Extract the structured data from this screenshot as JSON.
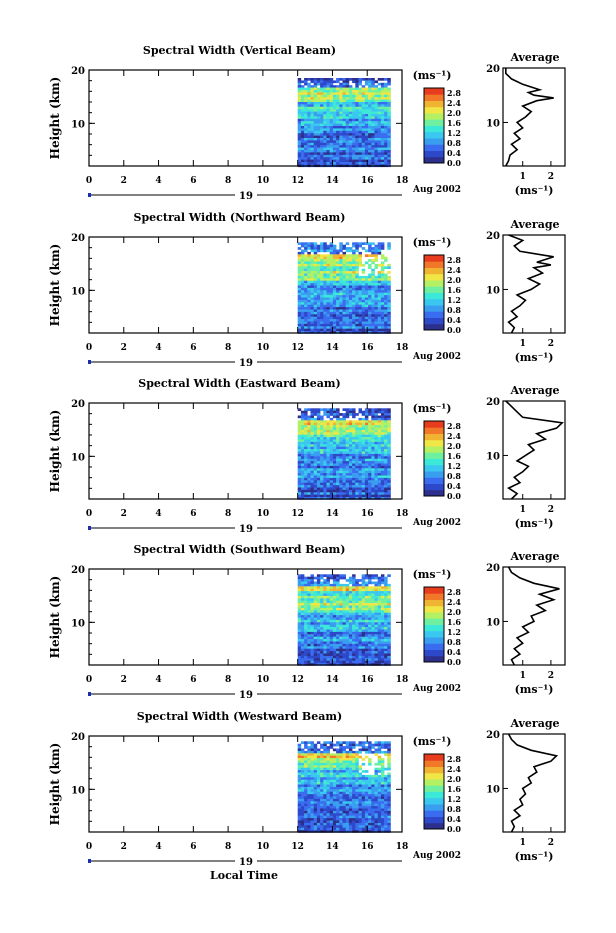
{
  "figure": {
    "xlabel": "Local Time",
    "ylabel": "Height (km)",
    "date_label": "Aug 2002",
    "day_label": "19",
    "unit_label": "(ms⁻¹)",
    "avg_title": "Average",
    "avg_xlabel": "(ms⁻¹)",
    "colors": [
      "#2c2f8c",
      "#2d48c8",
      "#3a6cf0",
      "#3a9ef0",
      "#3ac8f0",
      "#3ce8d8",
      "#6ef0a0",
      "#b4f064",
      "#f0e646",
      "#f0b432",
      "#f07828",
      "#e83c1e"
    ],
    "colorbar_ticks": [
      "0.0",
      "0.4",
      "0.8",
      "1.2",
      "1.6",
      "2.0",
      "2.4",
      "2.8"
    ]
  },
  "chart_data": [
    {
      "type": "heatmap",
      "title": "Spectral Width (Vertical Beam)",
      "xlim": [
        0,
        18
      ],
      "ylim": [
        2,
        20
      ],
      "xticks": [
        "0",
        "2",
        "4",
        "6",
        "8",
        "10",
        "12",
        "14",
        "16",
        "18"
      ],
      "yticks": [
        "10",
        "20"
      ],
      "data_x_range": [
        12,
        17.2
      ],
      "data_y_range": [
        2,
        18.5
      ],
      "average": {
        "xlabel_ticks": [
          "1",
          "2"
        ],
        "xlim": [
          0.3,
          2.5
        ],
        "profile": [
          [
            2,
            0.4
          ],
          [
            3,
            0.5
          ],
          [
            4,
            0.55
          ],
          [
            5,
            0.8
          ],
          [
            6,
            0.6
          ],
          [
            7,
            0.9
          ],
          [
            8,
            0.7
          ],
          [
            9,
            1.0
          ],
          [
            10,
            0.8
          ],
          [
            11,
            1.1
          ],
          [
            12,
            1.3
          ],
          [
            13,
            1.0
          ],
          [
            14,
            1.5
          ],
          [
            14.5,
            2.1
          ],
          [
            15,
            1.4
          ],
          [
            15.5,
            1.2
          ],
          [
            16,
            1.6
          ],
          [
            17,
            1.0
          ],
          [
            18,
            0.6
          ],
          [
            19,
            0.4
          ],
          [
            20,
            0.4
          ]
        ]
      }
    },
    {
      "type": "heatmap",
      "title": "Spectral Width (Northward Beam)",
      "xlim": [
        0,
        18
      ],
      "ylim": [
        2,
        20
      ],
      "xticks": [
        "0",
        "2",
        "4",
        "6",
        "8",
        "10",
        "12",
        "14",
        "16",
        "18"
      ],
      "yticks": [
        "10",
        "20"
      ],
      "data_x_range": [
        12,
        17.2
      ],
      "data_y_range": [
        2,
        19
      ],
      "average": {
        "xlabel_ticks": [
          "1",
          "2"
        ],
        "xlim": [
          0.3,
          2.5
        ],
        "profile": [
          [
            2,
            0.6
          ],
          [
            3,
            0.7
          ],
          [
            4,
            0.5
          ],
          [
            5,
            0.8
          ],
          [
            6,
            0.6
          ],
          [
            7,
            0.9
          ],
          [
            8,
            1.1
          ],
          [
            9,
            0.8
          ],
          [
            10,
            1.3
          ],
          [
            11,
            1.6
          ],
          [
            12,
            1.2
          ],
          [
            13,
            1.7
          ],
          [
            14,
            1.4
          ],
          [
            14.5,
            2.0
          ],
          [
            15,
            1.5
          ],
          [
            16,
            2.1
          ],
          [
            17,
            0.9
          ],
          [
            18,
            0.7
          ],
          [
            19,
            1.0
          ],
          [
            20,
            0.5
          ]
        ]
      }
    },
    {
      "type": "heatmap",
      "title": "Spectral Width (Eastward Beam)",
      "xlim": [
        0,
        18
      ],
      "ylim": [
        2,
        20
      ],
      "xticks": [
        "0",
        "2",
        "4",
        "6",
        "8",
        "10",
        "12",
        "14",
        "16",
        "18"
      ],
      "yticks": [
        "10",
        "20"
      ],
      "data_x_range": [
        12,
        17.2
      ],
      "data_y_range": [
        2,
        19
      ],
      "average": {
        "xlabel_ticks": [
          "1",
          "2"
        ],
        "xlim": [
          0.3,
          2.5
        ],
        "profile": [
          [
            2,
            0.6
          ],
          [
            3,
            0.8
          ],
          [
            4,
            0.5
          ],
          [
            5,
            0.9
          ],
          [
            6,
            0.7
          ],
          [
            7,
            1.0
          ],
          [
            8,
            1.2
          ],
          [
            9,
            0.8
          ],
          [
            10,
            1.1
          ],
          [
            11,
            1.4
          ],
          [
            12,
            1.2
          ],
          [
            13,
            1.8
          ],
          [
            14,
            1.5
          ],
          [
            15,
            2.2
          ],
          [
            16,
            2.4
          ],
          [
            17,
            1.0
          ],
          [
            18,
            0.8
          ],
          [
            19,
            0.6
          ],
          [
            20,
            0.4
          ]
        ]
      }
    },
    {
      "type": "heatmap",
      "title": "Spectral Width (Southward Beam)",
      "xlim": [
        0,
        18
      ],
      "ylim": [
        2,
        20
      ],
      "xticks": [
        "0",
        "2",
        "4",
        "6",
        "8",
        "10",
        "12",
        "14",
        "16",
        "18"
      ],
      "yticks": [
        "10",
        "20"
      ],
      "data_x_range": [
        12,
        17.2
      ],
      "data_y_range": [
        2,
        19
      ],
      "average": {
        "xlabel_ticks": [
          "1",
          "2"
        ],
        "xlim": [
          0.3,
          2.5
        ],
        "profile": [
          [
            2,
            0.7
          ],
          [
            3,
            0.6
          ],
          [
            4,
            0.9
          ],
          [
            5,
            0.7
          ],
          [
            6,
            1.0
          ],
          [
            7,
            0.8
          ],
          [
            8,
            1.2
          ],
          [
            9,
            1.0
          ],
          [
            10,
            1.4
          ],
          [
            11,
            1.3
          ],
          [
            12,
            1.8
          ],
          [
            13,
            1.5
          ],
          [
            14,
            2.1
          ],
          [
            15,
            1.6
          ],
          [
            16,
            2.3
          ],
          [
            17,
            1.4
          ],
          [
            18,
            0.9
          ],
          [
            19,
            0.6
          ],
          [
            20,
            0.5
          ]
        ]
      }
    },
    {
      "type": "heatmap",
      "title": "Spectral Width (Westward Beam)",
      "xlim": [
        0,
        18
      ],
      "ylim": [
        2,
        20
      ],
      "xticks": [
        "0",
        "2",
        "4",
        "6",
        "8",
        "10",
        "12",
        "14",
        "16",
        "18"
      ],
      "yticks": [
        "10",
        "20"
      ],
      "data_x_range": [
        12,
        17.2
      ],
      "data_y_range": [
        2,
        19
      ],
      "average": {
        "xlabel_ticks": [
          "1",
          "2"
        ],
        "xlim": [
          0.3,
          2.5
        ],
        "profile": [
          [
            2,
            0.6
          ],
          [
            3,
            0.7
          ],
          [
            4,
            0.6
          ],
          [
            5,
            0.9
          ],
          [
            6,
            0.7
          ],
          [
            7,
            1.0
          ],
          [
            8,
            0.9
          ],
          [
            9,
            1.1
          ],
          [
            10,
            1.0
          ],
          [
            11,
            1.3
          ],
          [
            12,
            1.2
          ],
          [
            13,
            1.5
          ],
          [
            14,
            1.4
          ],
          [
            15,
            2.0
          ],
          [
            16,
            2.2
          ],
          [
            17,
            1.3
          ],
          [
            18,
            0.8
          ],
          [
            19,
            0.6
          ],
          [
            20,
            0.5
          ]
        ]
      }
    }
  ]
}
